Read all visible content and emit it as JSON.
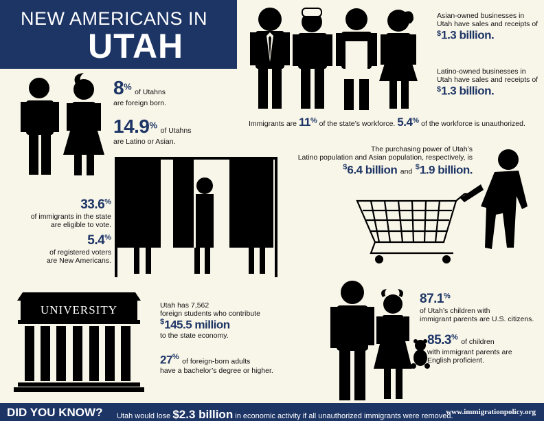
{
  "header": {
    "line1": "NEW AMERICANS IN",
    "line2": "UTAH"
  },
  "business": {
    "asian_text": "Asian-owned businesses in Utah have sales and receipts of",
    "asian_dollar": "$",
    "asian_value": "1.3 billion",
    "latino_text": "Latino-owned businesses in Utah have sales and receipts of",
    "latino_dollar": "$",
    "latino_value": "1.3 billion"
  },
  "workforce": {
    "pre": "Immigrants are",
    "v1": "11",
    "pct": "%",
    "mid": "of the state’s workforce.",
    "v2": "5.4",
    "post": "of the workforce is unauthorized."
  },
  "foreign_born": {
    "value": "8",
    "pct": "%",
    "text1": "of Utahns",
    "text2": "are foreign born."
  },
  "latino_asian": {
    "value": "14.9",
    "pct": "%",
    "text1": "of Utahns",
    "text2": "are Latino or Asian."
  },
  "vote": {
    "v1": "33.6",
    "pct": "%",
    "t1a": "of immigrants in the state",
    "t1b": "are eligible to vote.",
    "v2": "5.4",
    "t2a": "of registered voters",
    "t2b": "are New Americans."
  },
  "purchasing": {
    "line1": "The purchasing power of Utah’s",
    "line2": "Latino population and Asian population, respectively, is",
    "d": "$",
    "v1": "6.4 billion",
    "and": "and",
    "v2": "1.9 billion",
    "dot": "."
  },
  "university": {
    "sign": "UNIVERSITY",
    "line1": "Utah has 7,562",
    "line2": "foreign students who contribute",
    "d": "$",
    "value": "145.5 million",
    "line3": "to the state economy.",
    "v2": "27",
    "pct": "%",
    "t2a": "of foreign-born adults",
    "t2b": "have a bachelor’s degree or higher."
  },
  "children": {
    "v1": "87.1",
    "pct": "%",
    "t1a": "of Utah’s children with",
    "t1b": "immigrant parents are U.S. citizens.",
    "v2": "85.3",
    "t2a": "of children",
    "t2b": "with immigrant parents are",
    "t2c": "English proficient."
  },
  "footer": {
    "dyk": "DID YOU KNOW?",
    "pre": "Utah would lose",
    "amount": "$2.3 billion",
    "post": "in economic activity if all unauthorized immigrants were removed.",
    "url": "www.immigrationpolicy.org"
  },
  "colors": {
    "navy": "#1d3565",
    "background": "#f8f5e9",
    "ink": "#000000"
  }
}
